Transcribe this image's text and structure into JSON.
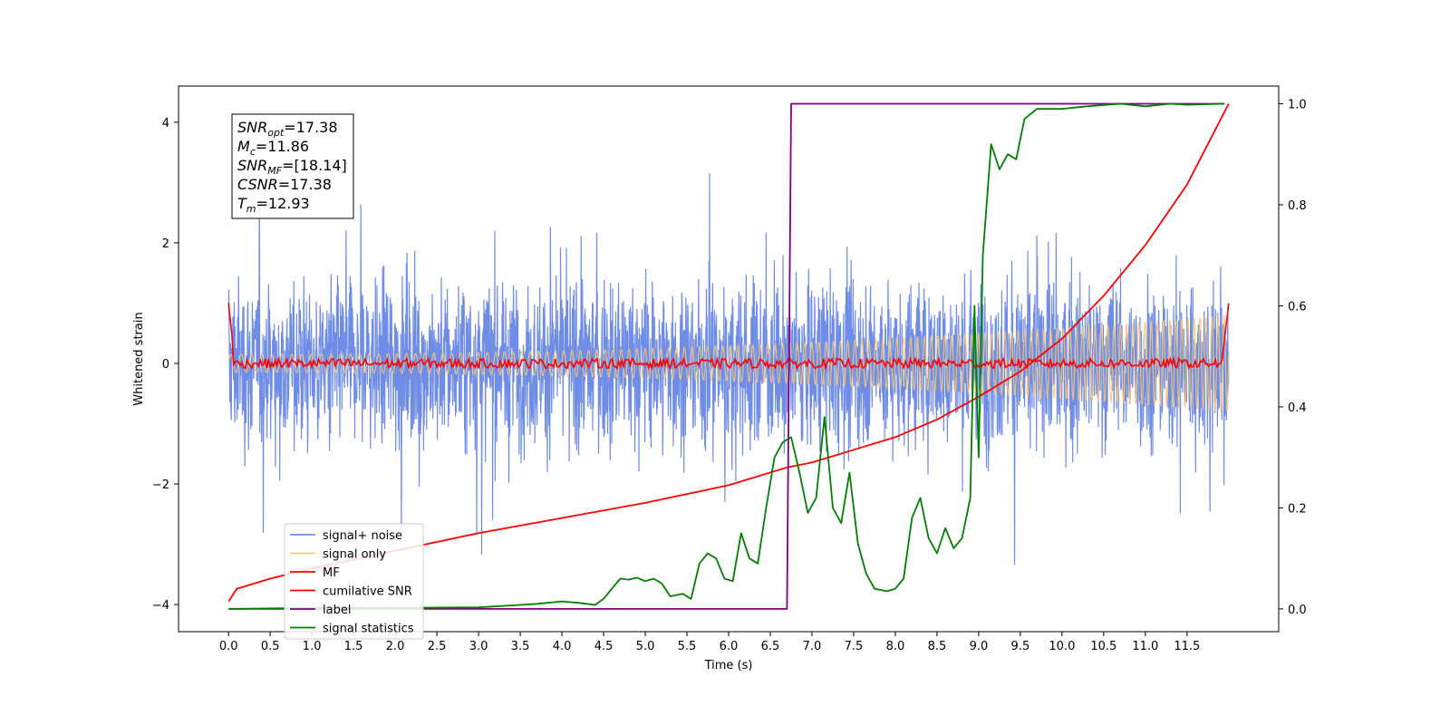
{
  "chart_data": {
    "type": "line",
    "xlabel": "Time (s)",
    "ylabel": "Whitened strain",
    "xlim": [
      -0.6,
      12.6
    ],
    "ylim": [
      -4.45,
      4.6
    ],
    "y2lim": [
      -0.045,
      1.035
    ],
    "x_ticks": [
      "0.0",
      "0.5",
      "1.0",
      "1.5",
      "2.0",
      "2.5",
      "3.0",
      "3.5",
      "4.0",
      "4.5",
      "5.0",
      "5.5",
      "6.0",
      "6.5",
      "7.0",
      "7.5",
      "8.0",
      "8.5",
      "9.0",
      "9.5",
      "10.0",
      "10.5",
      "11.0",
      "11.5"
    ],
    "y_ticks": [
      "4",
      "2",
      "0",
      "−2",
      "−4"
    ],
    "y2_ticks": [
      "1.0",
      "0.8",
      "0.6",
      "0.4",
      "0.2",
      "0.0"
    ],
    "legend_position": "lower-left",
    "info_box": {
      "lines": [
        {
          "sym": "SNR",
          "sub": "opt",
          "val": "=17.38"
        },
        {
          "sym": "M",
          "sub": "c",
          "val": "=11.86"
        },
        {
          "sym": "SNR",
          "sub": "MF",
          "val": "=[18.14]"
        },
        {
          "sym": "CSNR",
          "sub": "",
          "val": "=17.38"
        },
        {
          "sym": "T",
          "sub": "m",
          "val": "=12.93"
        }
      ]
    },
    "series": [
      {
        "name": "signal+ noise",
        "color": "#6f8de6",
        "axis": "left",
        "description_range": [
          -3.6,
          3.6
        ]
      },
      {
        "name": "signal only",
        "color": "#f5c776",
        "axis": "left",
        "amplitude_start": 0.15,
        "amplitude_end": 0.8
      },
      {
        "name": "MF",
        "color": "#ff0000",
        "axis": "left",
        "points": [
          [
            0.0,
            1.0
          ],
          [
            0.05,
            0.8
          ],
          [
            0.08,
            0.0
          ],
          [
            0.15,
            0.05
          ],
          [
            11.9,
            0.05
          ],
          [
            11.95,
            0.4
          ],
          [
            12.0,
            1.0
          ]
        ]
      },
      {
        "name": "cumilative SNR",
        "color": "#ff0000",
        "axis": "right",
        "points": [
          [
            0.0,
            0.015
          ],
          [
            0.1,
            0.04
          ],
          [
            0.5,
            0.06
          ],
          [
            1.0,
            0.08
          ],
          [
            2.0,
            0.115
          ],
          [
            3.0,
            0.15
          ],
          [
            4.0,
            0.18
          ],
          [
            5.0,
            0.21
          ],
          [
            6.0,
            0.245
          ],
          [
            6.7,
            0.28
          ],
          [
            7.0,
            0.29
          ],
          [
            7.5,
            0.315
          ],
          [
            8.0,
            0.34
          ],
          [
            8.5,
            0.375
          ],
          [
            9.0,
            0.42
          ],
          [
            9.5,
            0.47
          ],
          [
            10.0,
            0.535
          ],
          [
            10.5,
            0.62
          ],
          [
            11.0,
            0.72
          ],
          [
            11.5,
            0.84
          ],
          [
            12.0,
            1.0
          ]
        ]
      },
      {
        "name": "label",
        "color": "#800080",
        "axis": "right",
        "points": [
          [
            0.0,
            0.0
          ],
          [
            6.7,
            0.0
          ],
          [
            6.75,
            1.0
          ],
          [
            11.95,
            1.0
          ]
        ]
      },
      {
        "name": "signal statistics",
        "color": "#008000",
        "axis": "right",
        "points": [
          [
            0.0,
            0.0
          ],
          [
            1.0,
            0.002
          ],
          [
            2.0,
            0.002
          ],
          [
            3.0,
            0.003
          ],
          [
            3.5,
            0.008
          ],
          [
            3.7,
            0.01
          ],
          [
            4.0,
            0.015
          ],
          [
            4.2,
            0.012
          ],
          [
            4.4,
            0.008
          ],
          [
            4.5,
            0.02
          ],
          [
            4.6,
            0.04
          ],
          [
            4.7,
            0.06
          ],
          [
            4.8,
            0.058
          ],
          [
            4.9,
            0.062
          ],
          [
            5.0,
            0.055
          ],
          [
            5.1,
            0.06
          ],
          [
            5.2,
            0.05
          ],
          [
            5.3,
            0.025
          ],
          [
            5.45,
            0.03
          ],
          [
            5.55,
            0.02
          ],
          [
            5.65,
            0.09
          ],
          [
            5.75,
            0.11
          ],
          [
            5.85,
            0.1
          ],
          [
            5.95,
            0.06
          ],
          [
            6.05,
            0.055
          ],
          [
            6.15,
            0.15
          ],
          [
            6.25,
            0.1
          ],
          [
            6.35,
            0.09
          ],
          [
            6.45,
            0.2
          ],
          [
            6.55,
            0.3
          ],
          [
            6.65,
            0.33
          ],
          [
            6.75,
            0.34
          ],
          [
            6.85,
            0.27
          ],
          [
            6.95,
            0.19
          ],
          [
            7.05,
            0.22
          ],
          [
            7.15,
            0.38
          ],
          [
            7.25,
            0.2
          ],
          [
            7.35,
            0.17
          ],
          [
            7.45,
            0.27
          ],
          [
            7.55,
            0.13
          ],
          [
            7.65,
            0.07
          ],
          [
            7.75,
            0.04
          ],
          [
            7.9,
            0.035
          ],
          [
            8.0,
            0.04
          ],
          [
            8.1,
            0.06
          ],
          [
            8.2,
            0.18
          ],
          [
            8.3,
            0.22
          ],
          [
            8.4,
            0.14
          ],
          [
            8.5,
            0.11
          ],
          [
            8.6,
            0.16
          ],
          [
            8.7,
            0.12
          ],
          [
            8.8,
            0.14
          ],
          [
            8.9,
            0.22
          ],
          [
            8.95,
            0.6
          ],
          [
            9.0,
            0.3
          ],
          [
            9.05,
            0.7
          ],
          [
            9.15,
            0.92
          ],
          [
            9.25,
            0.87
          ],
          [
            9.35,
            0.9
          ],
          [
            9.45,
            0.89
          ],
          [
            9.55,
            0.97
          ],
          [
            9.7,
            0.99
          ],
          [
            10.0,
            0.99
          ],
          [
            10.3,
            0.995
          ],
          [
            10.7,
            1.0
          ],
          [
            11.0,
            0.995
          ],
          [
            11.3,
            1.0
          ],
          [
            11.5,
            0.998
          ],
          [
            11.95,
            1.0
          ]
        ]
      }
    ]
  }
}
